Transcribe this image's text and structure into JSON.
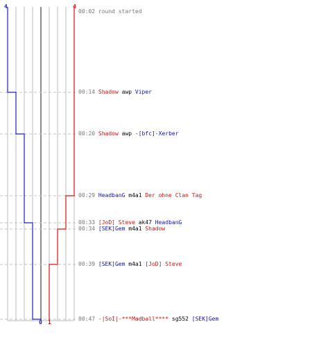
{
  "colors": {
    "blue_team": "#1a1acc",
    "red_team": "#dd1111",
    "grid": "#bbbbbb",
    "center": "#666666",
    "dash": "#c0c0c0",
    "time": "#777777"
  },
  "scores": {
    "blue_start": "4",
    "red_start": "4",
    "blue_end": "0",
    "red_end": "1"
  },
  "events": [
    {
      "time": "00:02",
      "kind": "message",
      "text": "round started"
    },
    {
      "time": "00:14",
      "kind": "kill",
      "killer": "Shadow",
      "killer_team": "red",
      "weapon": "awp",
      "victim": "Viper",
      "victim_team": "blue"
    },
    {
      "time": "00:20",
      "kind": "kill",
      "killer": "Shadow",
      "killer_team": "red",
      "weapon": "awp",
      "victim": "-[bfc]-Xerber",
      "victim_team": "blue"
    },
    {
      "time": "00:29",
      "kind": "kill",
      "killer": "HeadbanG",
      "killer_team": "blue",
      "weapon": "m4a1",
      "victim": "Der ohne Clan Tag",
      "victim_team": "red"
    },
    {
      "time": "00:33",
      "kind": "kill",
      "killer": "[JoD] Steve",
      "killer_team": "red",
      "weapon": "ak47",
      "victim": "HeadbanG",
      "victim_team": "blue"
    },
    {
      "time": "00:34",
      "kind": "kill",
      "killer": "[SEK]Gem",
      "killer_team": "blue",
      "weapon": "m4a1",
      "victim": "Shadow",
      "victim_team": "red"
    },
    {
      "time": "00:39",
      "kind": "kill",
      "killer": "[SEK]Gem",
      "killer_team": "blue",
      "weapon": "m4a1",
      "victim": "[JoD] Steve",
      "victim_team": "red"
    },
    {
      "time": "00:47",
      "kind": "kill",
      "killer": "-|SoI|-***Madball****",
      "killer_team": "red",
      "weapon": "sg552",
      "victim": "[SEK]Gem",
      "victim_team": "blue"
    }
  ]
}
